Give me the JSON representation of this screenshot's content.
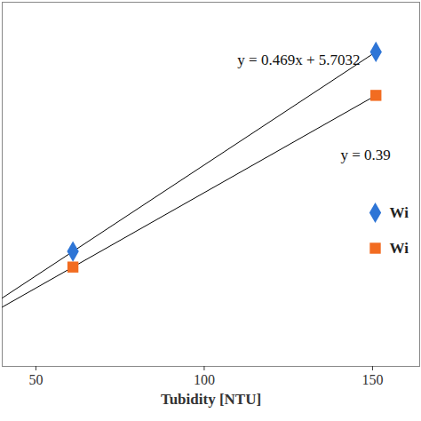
{
  "chart_data": {
    "type": "scatter",
    "x_label": "Tubidity [NTU]",
    "x": [
      61,
      151
    ],
    "series": [
      {
        "name": "Wi",
        "color": "#2e75d6",
        "marker": "diamond",
        "values": [
          34.3,
          76.5
        ]
      },
      {
        "name": "Wi",
        "color": "#f26c21",
        "marker": "square",
        "values": [
          31.0,
          67.3
        ]
      }
    ],
    "annotations": [
      "y = 0.469x + 5.7032",
      "y = 0.39"
    ],
    "xlim": [
      40,
      164
    ],
    "xticks": [
      50,
      100,
      150
    ],
    "ylim": [
      10,
      87
    ],
    "yticks": [],
    "tick_labels": "x",
    "grid": false,
    "legend": "right"
  }
}
